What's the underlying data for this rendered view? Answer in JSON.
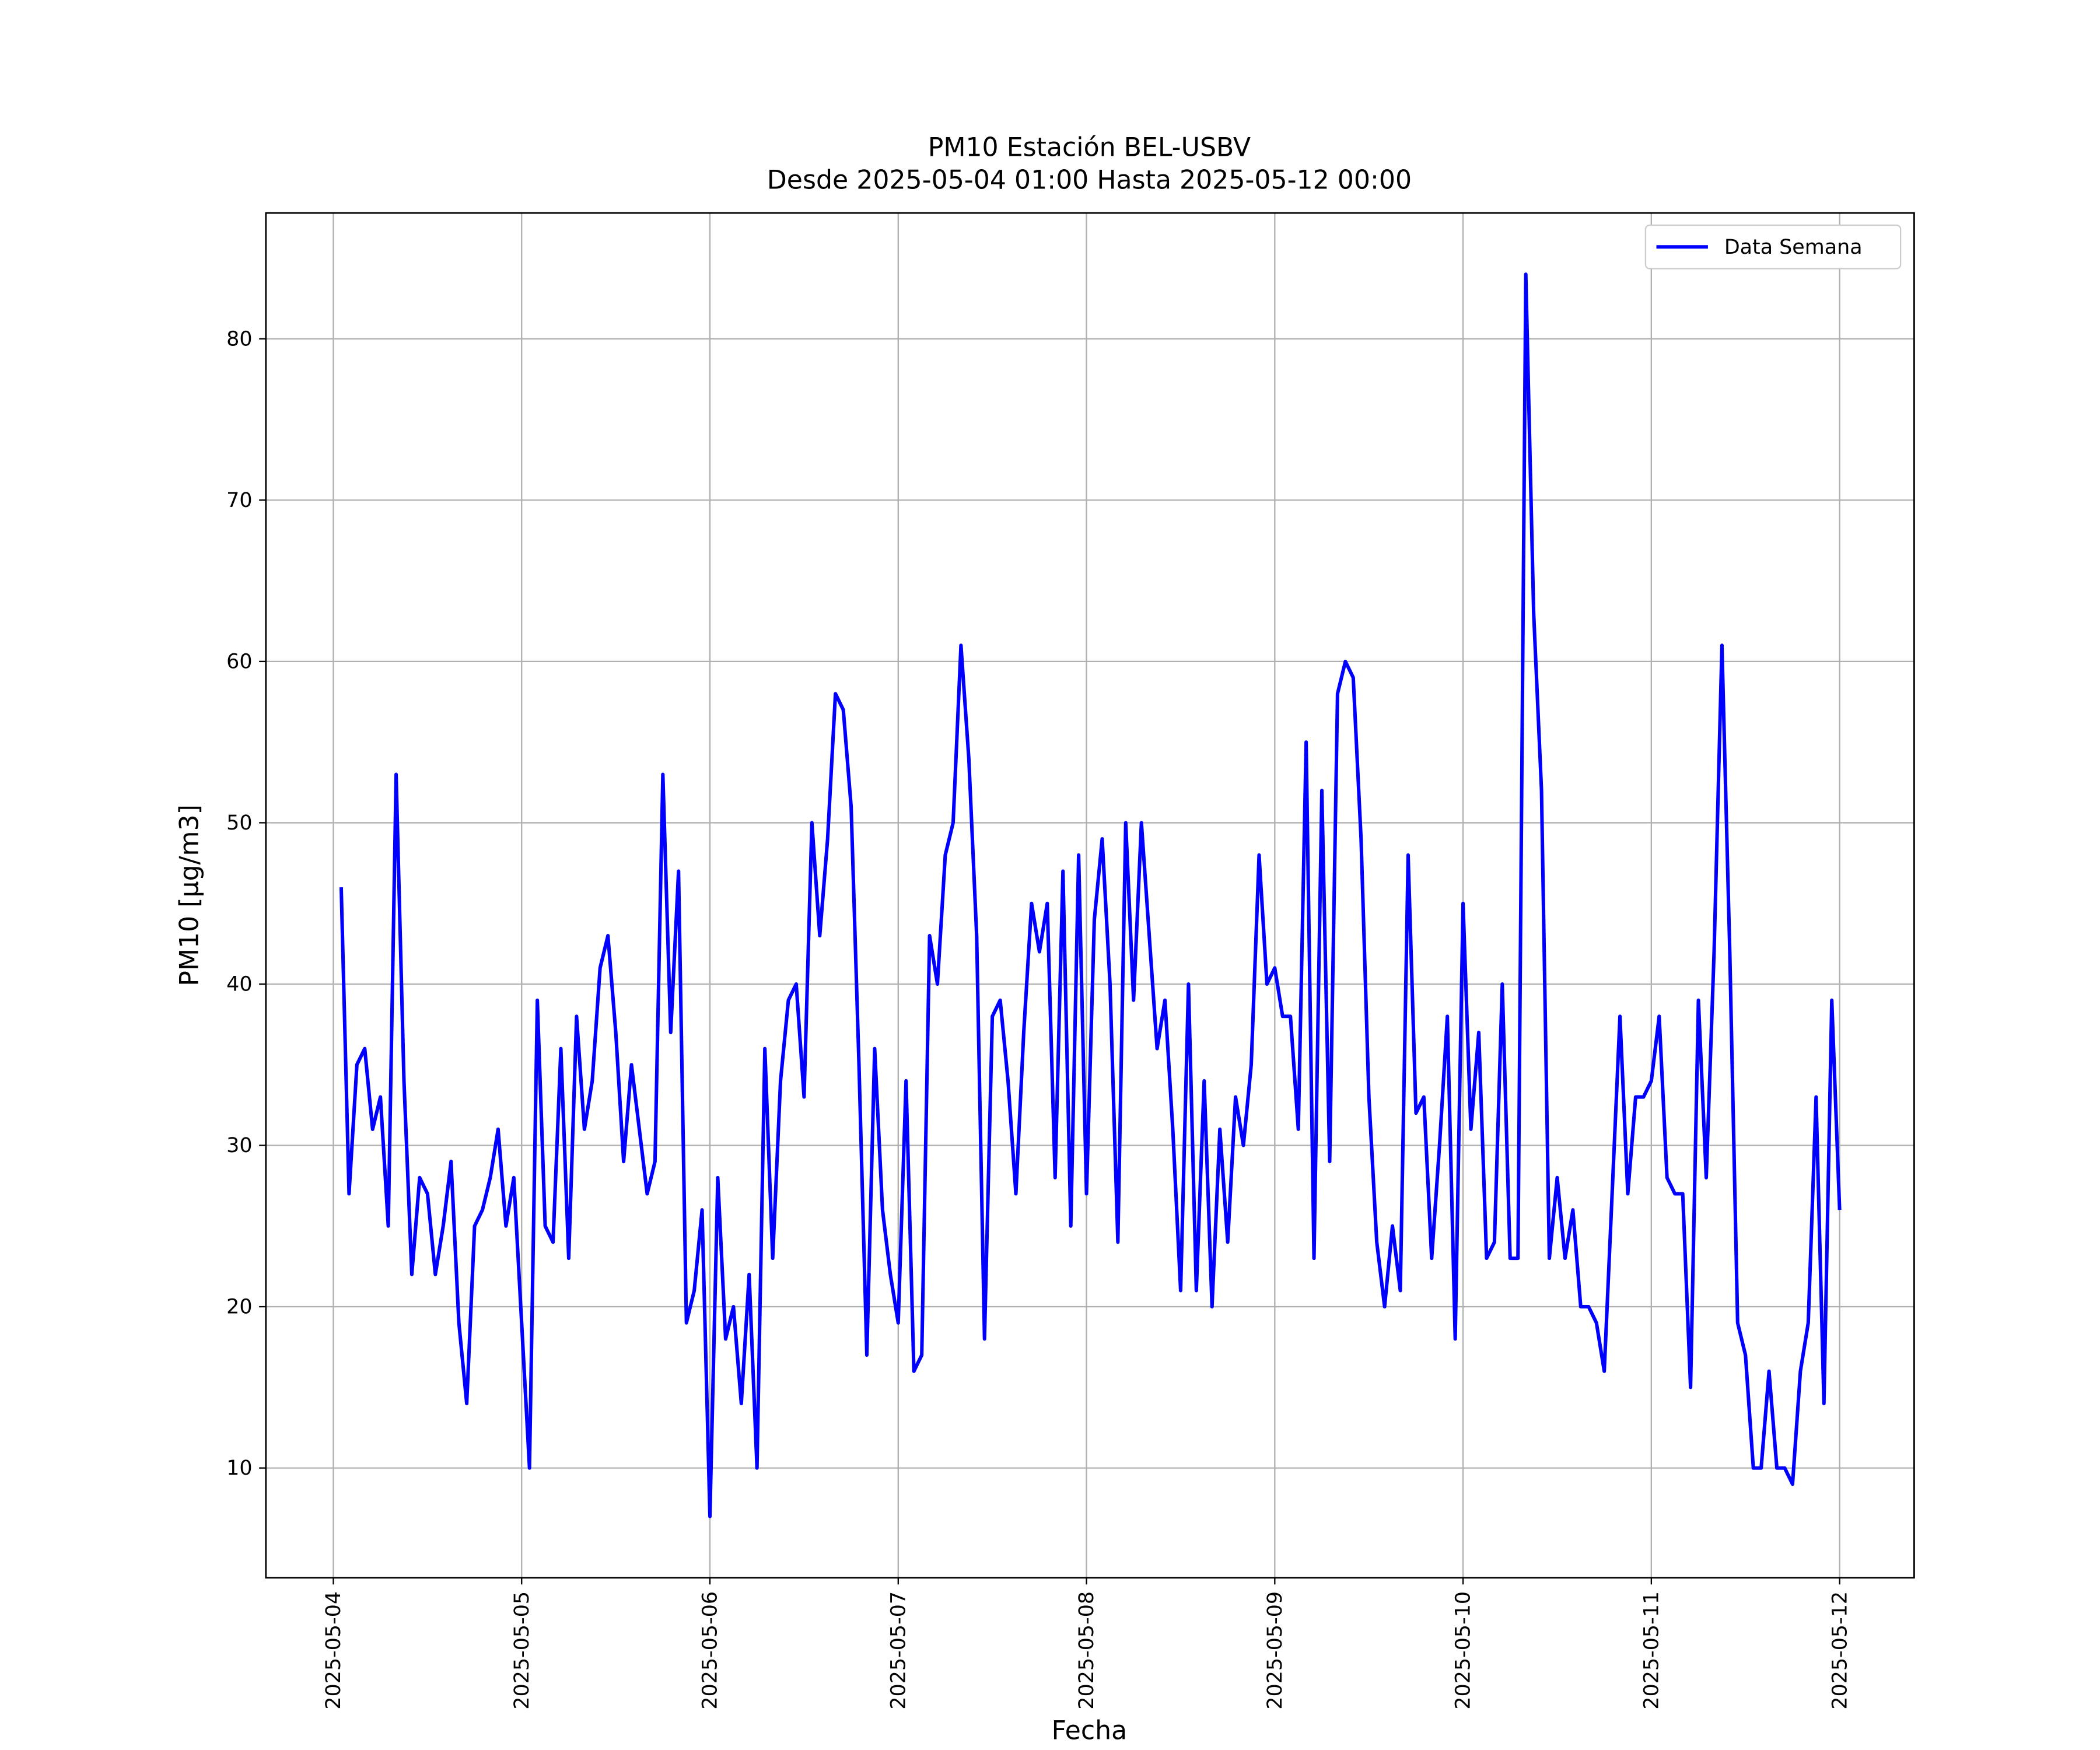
{
  "chart_data": {
    "type": "line",
    "title": "PM10 Estación BEL-USBV",
    "subtitle": "Desde 2025-05-04 01:00 Hasta 2025-05-12 00:00",
    "x_label": "Fecha",
    "y_label": "PM10 [μg/m3]",
    "x": [
      "2025-05-04 01:00",
      "2025-05-04 02:00",
      "2025-05-04 03:00",
      "2025-05-04 04:00",
      "2025-05-04 05:00",
      "2025-05-04 06:00",
      "2025-05-04 07:00",
      "2025-05-04 08:00",
      "2025-05-04 09:00",
      "2025-05-04 10:00",
      "2025-05-04 11:00",
      "2025-05-04 12:00",
      "2025-05-04 13:00",
      "2025-05-04 14:00",
      "2025-05-04 15:00",
      "2025-05-04 16:00",
      "2025-05-04 17:00",
      "2025-05-04 18:00",
      "2025-05-04 19:00",
      "2025-05-04 20:00",
      "2025-05-04 21:00",
      "2025-05-04 22:00",
      "2025-05-04 23:00",
      "2025-05-05 00:00",
      "2025-05-05 01:00",
      "2025-05-05 02:00",
      "2025-05-05 03:00",
      "2025-05-05 04:00",
      "2025-05-05 05:00",
      "2025-05-05 06:00",
      "2025-05-05 07:00",
      "2025-05-05 08:00",
      "2025-05-05 09:00",
      "2025-05-05 10:00",
      "2025-05-05 11:00",
      "2025-05-05 12:00",
      "2025-05-05 13:00",
      "2025-05-05 14:00",
      "2025-05-05 15:00",
      "2025-05-05 16:00",
      "2025-05-05 17:00",
      "2025-05-05 18:00",
      "2025-05-05 19:00",
      "2025-05-05 20:00",
      "2025-05-05 21:00",
      "2025-05-05 22:00",
      "2025-05-05 23:00",
      "2025-05-06 00:00",
      "2025-05-06 01:00",
      "2025-05-06 02:00",
      "2025-05-06 03:00",
      "2025-05-06 04:00",
      "2025-05-06 05:00",
      "2025-05-06 06:00",
      "2025-05-06 07:00",
      "2025-05-06 08:00",
      "2025-05-06 09:00",
      "2025-05-06 10:00",
      "2025-05-06 11:00",
      "2025-05-06 12:00",
      "2025-05-06 13:00",
      "2025-05-06 14:00",
      "2025-05-06 15:00",
      "2025-05-06 16:00",
      "2025-05-06 17:00",
      "2025-05-06 18:00",
      "2025-05-06 19:00",
      "2025-05-06 20:00",
      "2025-05-06 21:00",
      "2025-05-06 22:00",
      "2025-05-06 23:00",
      "2025-05-07 00:00",
      "2025-05-07 01:00",
      "2025-05-07 02:00",
      "2025-05-07 03:00",
      "2025-05-07 04:00",
      "2025-05-07 05:00",
      "2025-05-07 06:00",
      "2025-05-07 07:00",
      "2025-05-07 08:00",
      "2025-05-07 09:00",
      "2025-05-07 10:00",
      "2025-05-07 11:00",
      "2025-05-07 12:00",
      "2025-05-07 13:00",
      "2025-05-07 14:00",
      "2025-05-07 15:00",
      "2025-05-07 16:00",
      "2025-05-07 17:00",
      "2025-05-07 18:00",
      "2025-05-07 19:00",
      "2025-05-07 20:00",
      "2025-05-07 21:00",
      "2025-05-07 22:00",
      "2025-05-07 23:00",
      "2025-05-08 00:00",
      "2025-05-08 01:00",
      "2025-05-08 02:00",
      "2025-05-08 03:00",
      "2025-05-08 04:00",
      "2025-05-08 05:00",
      "2025-05-08 06:00",
      "2025-05-08 07:00",
      "2025-05-08 08:00",
      "2025-05-08 09:00",
      "2025-05-08 10:00",
      "2025-05-08 11:00",
      "2025-05-08 12:00",
      "2025-05-08 13:00",
      "2025-05-08 14:00",
      "2025-05-08 15:00",
      "2025-05-08 16:00",
      "2025-05-08 17:00",
      "2025-05-08 18:00",
      "2025-05-08 19:00",
      "2025-05-08 20:00",
      "2025-05-08 21:00",
      "2025-05-08 22:00",
      "2025-05-08 23:00",
      "2025-05-09 00:00",
      "2025-05-09 01:00",
      "2025-05-09 02:00",
      "2025-05-09 03:00",
      "2025-05-09 04:00",
      "2025-05-09 05:00",
      "2025-05-09 06:00",
      "2025-05-09 07:00",
      "2025-05-09 08:00",
      "2025-05-09 09:00",
      "2025-05-09 10:00",
      "2025-05-09 11:00",
      "2025-05-09 12:00",
      "2025-05-09 13:00",
      "2025-05-09 14:00",
      "2025-05-09 15:00",
      "2025-05-09 16:00",
      "2025-05-09 17:00",
      "2025-05-09 18:00",
      "2025-05-09 19:00",
      "2025-05-09 20:00",
      "2025-05-09 21:00",
      "2025-05-09 22:00",
      "2025-05-09 23:00",
      "2025-05-10 00:00",
      "2025-05-10 01:00",
      "2025-05-10 02:00",
      "2025-05-10 03:00",
      "2025-05-10 04:00",
      "2025-05-10 05:00",
      "2025-05-10 06:00",
      "2025-05-10 07:00",
      "2025-05-10 08:00",
      "2025-05-10 09:00",
      "2025-05-10 10:00",
      "2025-05-10 11:00",
      "2025-05-10 12:00",
      "2025-05-10 13:00",
      "2025-05-10 14:00",
      "2025-05-10 15:00",
      "2025-05-10 16:00",
      "2025-05-10 17:00",
      "2025-05-10 18:00",
      "2025-05-10 19:00",
      "2025-05-10 20:00",
      "2025-05-10 21:00",
      "2025-05-10 22:00",
      "2025-05-10 23:00",
      "2025-05-11 00:00",
      "2025-05-11 01:00",
      "2025-05-11 02:00",
      "2025-05-11 03:00",
      "2025-05-11 04:00",
      "2025-05-11 05:00",
      "2025-05-11 06:00",
      "2025-05-11 07:00",
      "2025-05-11 08:00",
      "2025-05-11 09:00",
      "2025-05-11 10:00",
      "2025-05-11 11:00",
      "2025-05-11 12:00",
      "2025-05-11 13:00",
      "2025-05-11 14:00",
      "2025-05-11 15:00",
      "2025-05-11 16:00",
      "2025-05-11 17:00",
      "2025-05-11 18:00",
      "2025-05-11 19:00",
      "2025-05-11 20:00",
      "2025-05-11 21:00",
      "2025-05-11 22:00",
      "2025-05-11 23:00",
      "2025-05-12 00:00"
    ],
    "series": [
      {
        "name": "Data Semana",
        "color": "#0000ff",
        "values": [
          46,
          27,
          35,
          36,
          31,
          33,
          25,
          53,
          34,
          22,
          28,
          27,
          22,
          25,
          29,
          19,
          14,
          25,
          26,
          28,
          31,
          25,
          28,
          19,
          10,
          39,
          25,
          24,
          36,
          23,
          38,
          31,
          34,
          41,
          43,
          37,
          29,
          35,
          31,
          27,
          29,
          53,
          37,
          47,
          19,
          21,
          26,
          7,
          28,
          18,
          20,
          14,
          22,
          10,
          36,
          23,
          34,
          39,
          40,
          33,
          50,
          43,
          49,
          58,
          57,
          51,
          35,
          17,
          36,
          26,
          22,
          19,
          34,
          16,
          17,
          43,
          40,
          48,
          50,
          61,
          54,
          43,
          18,
          38,
          39,
          34,
          27,
          37,
          45,
          42,
          45,
          28,
          47,
          25,
          48,
          27,
          44,
          49,
          40,
          24,
          50,
          39,
          50,
          43,
          36,
          39,
          31,
          21,
          40,
          21,
          34,
          20,
          31,
          24,
          33,
          30,
          35,
          48,
          40,
          41,
          38,
          38,
          31,
          55,
          23,
          52,
          29,
          58,
          60,
          59,
          49,
          33,
          24,
          20,
          25,
          21,
          48,
          32,
          33,
          23,
          30,
          38,
          18,
          45,
          31,
          37,
          23,
          24,
          40,
          23,
          23,
          84,
          63,
          52,
          23,
          28,
          23,
          26,
          20,
          20,
          19,
          16,
          27,
          38,
          27,
          33,
          33,
          34,
          38,
          28,
          27,
          27,
          15,
          39,
          28,
          42,
          61,
          42,
          19,
          17,
          10,
          10,
          16,
          10,
          10,
          9,
          16,
          19,
          33,
          14,
          39,
          26
        ]
      }
    ],
    "xlim": [
      "2025-05-03 15:24",
      "2025-05-12 09:30"
    ],
    "xticks": [
      "2025-05-04",
      "2025-05-05",
      "2025-05-06",
      "2025-05-07",
      "2025-05-08",
      "2025-05-09",
      "2025-05-10",
      "2025-05-11",
      "2025-05-12"
    ],
    "ylim": [
      3.2,
      87.8
    ],
    "yticks": [
      10,
      20,
      30,
      40,
      50,
      60,
      70,
      80
    ],
    "grid": true,
    "legend": "upper right"
  }
}
